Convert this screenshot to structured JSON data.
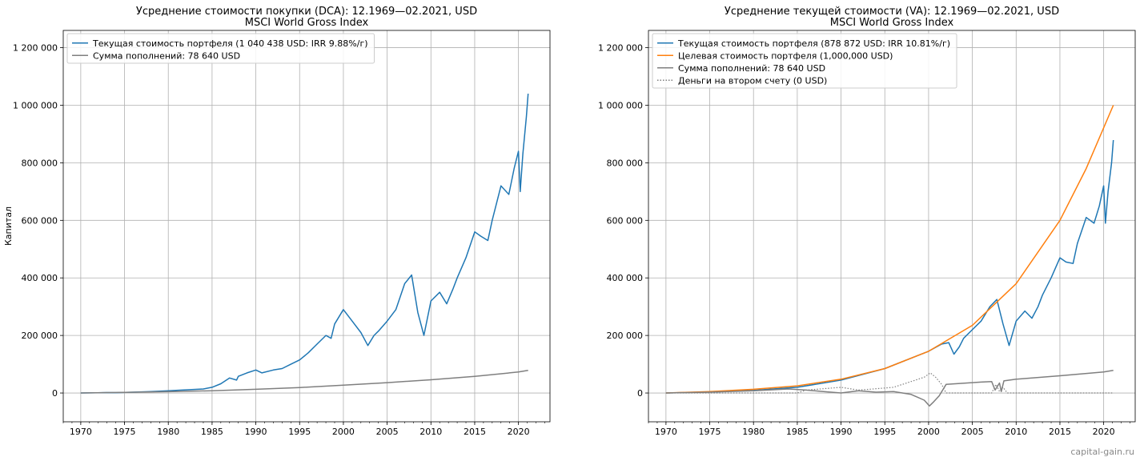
{
  "watermark": "capital-gain.ru",
  "chart_data": [
    {
      "type": "line",
      "title": "Усреднение стоимости покупки (DCA): 12.1969—02.2021, USD",
      "subtitle": "MSCI World Gross Index",
      "xlabel": "",
      "ylabel": "Капитал",
      "xlim": [
        1968,
        2023.6
      ],
      "ylim": [
        -100000,
        1260000
      ],
      "x_ticks": [
        1970,
        1975,
        1980,
        1985,
        1990,
        1995,
        2000,
        2005,
        2010,
        2015,
        2020
      ],
      "x_tick_labels": [
        "1970",
        "1975",
        "1980",
        "1985",
        "1990",
        "1995",
        "2000",
        "2005",
        "2010",
        "2015",
        "2020"
      ],
      "y_ticks": [
        0,
        200000,
        400000,
        600000,
        800000,
        1000000,
        1200000
      ],
      "y_tick_labels": [
        "0",
        "200 000",
        "400 000",
        "600 000",
        "800 000",
        "1 000 000",
        "1 200 000"
      ],
      "grid": true,
      "legend_position": "top-left",
      "series": [
        {
          "name": "Текущая стоимость портфеля (1 040 438 USD: IRR 9.88%/г)",
          "color": "#1f77b4",
          "style": "solid",
          "x": [
            1970,
            1972,
            1973,
            1974,
            1976,
            1978,
            1980,
            1982,
            1984,
            1985,
            1986,
            1987,
            1987.8,
            1988,
            1989,
            1990,
            1990.7,
            1992,
            1993,
            1994,
            1995,
            1996,
            1997,
            1998,
            1998.6,
            1999,
            2000,
            2001,
            2002,
            2002.8,
            2003.5,
            2004,
            2005,
            2006,
            2007,
            2007.8,
            2008.5,
            2009.2,
            2010,
            2011,
            2011.8,
            2012.5,
            2013,
            2014,
            2015,
            2015.7,
            2016.5,
            2017,
            2018,
            2018.9,
            2019.5,
            2020,
            2020.2,
            2020.5,
            2020.9,
            2021.1
          ],
          "values": [
            0,
            1000,
            1500,
            1300,
            3000,
            5000,
            8000,
            11000,
            14000,
            20000,
            32000,
            52000,
            45000,
            58000,
            70000,
            80000,
            70000,
            80000,
            85000,
            100000,
            115000,
            140000,
            170000,
            200000,
            190000,
            240000,
            290000,
            250000,
            210000,
            165000,
            200000,
            215000,
            250000,
            290000,
            380000,
            410000,
            280000,
            200000,
            320000,
            350000,
            310000,
            360000,
            400000,
            470000,
            560000,
            545000,
            530000,
            600000,
            720000,
            690000,
            780000,
            840000,
            700000,
            830000,
            960000,
            1040000
          ]
        },
        {
          "name": "Сумма пополнений: 78 640 USD",
          "color": "#7f7f7f",
          "style": "solid",
          "x": [
            1970,
            1975,
            1980,
            1985,
            1990,
            1995,
            2000,
            2005,
            2010,
            2015,
            2020,
            2021.1
          ],
          "values": [
            0,
            2000,
            4500,
            8000,
            13000,
            19000,
            27000,
            36000,
            46000,
            58000,
            73000,
            78640
          ]
        }
      ]
    },
    {
      "type": "line",
      "title": "Усреднение текущей стоимости (VA): 12.1969—02.2021, USD",
      "subtitle": "MSCI World Gross Index",
      "xlabel": "",
      "ylabel": "",
      "xlim": [
        1968,
        2023.6
      ],
      "ylim": [
        -100000,
        1260000
      ],
      "x_ticks": [
        1970,
        1975,
        1980,
        1985,
        1990,
        1995,
        2000,
        2005,
        2010,
        2015,
        2020
      ],
      "x_tick_labels": [
        "1970",
        "1975",
        "1980",
        "1985",
        "1990",
        "1995",
        "2000",
        "2005",
        "2010",
        "2015",
        "2020"
      ],
      "y_ticks": [
        0,
        200000,
        400000,
        600000,
        800000,
        1000000,
        1200000
      ],
      "y_tick_labels": [
        "0",
        "200 000",
        "400 000",
        "600 000",
        "800 000",
        "1 000 000",
        "1 200 000"
      ],
      "grid": true,
      "legend_position": "top-left",
      "series": [
        {
          "name": "Текущая стоимость портфеля (878 872 USD: IRR 10.81%/г)",
          "color": "#1f77b4",
          "style": "solid",
          "x": [
            1970,
            1975,
            1980,
            1985,
            1990,
            1995,
            2000,
            2001.5,
            2002.3,
            2002.9,
            2003.5,
            2004,
            2005,
            2006,
            2007,
            2007.8,
            2008.5,
            2009.2,
            2010,
            2011,
            2011.8,
            2012.5,
            2013,
            2014,
            2015,
            2015.7,
            2016.5,
            2017,
            2018,
            2018.9,
            2019.5,
            2020,
            2020.2,
            2020.5,
            2020.9,
            2021.1
          ],
          "values": [
            0,
            3500,
            9000,
            20000,
            45000,
            85000,
            145000,
            170000,
            175000,
            135000,
            160000,
            190000,
            220000,
            250000,
            300000,
            325000,
            240000,
            165000,
            250000,
            285000,
            260000,
            300000,
            340000,
            400000,
            470000,
            455000,
            450000,
            520000,
            610000,
            590000,
            650000,
            720000,
            590000,
            700000,
            800000,
            878872
          ]
        },
        {
          "name": "Целевая стоимость портфеля (1,000,000 USD)",
          "color": "#ff7f0e",
          "style": "solid",
          "x": [
            1970,
            1975,
            1980,
            1985,
            1990,
            1995,
            2000,
            2005,
            2010,
            2015,
            2018,
            2021.1
          ],
          "values": [
            0,
            5000,
            13000,
            25000,
            48000,
            85000,
            145000,
            235000,
            380000,
            600000,
            780000,
            1000000
          ]
        },
        {
          "name": "Сумма пополнений: 78 640 USD",
          "color": "#7f7f7f",
          "style": "solid",
          "x": [
            1970,
            1975,
            1980,
            1984,
            1986,
            1988,
            1990,
            1992,
            1994,
            1996,
            1998,
            1999.5,
            2000.1,
            2000.6,
            2001.2,
            2002,
            2006,
            2007.2,
            2007.6,
            2008.1,
            2008.3,
            2008.6,
            2010,
            2015,
            2020,
            2021.1
          ],
          "values": [
            0,
            3000,
            8000,
            14000,
            10000,
            5000,
            0,
            8000,
            3000,
            5000,
            -5000,
            -25000,
            -45000,
            -30000,
            -10000,
            30000,
            38000,
            40000,
            10000,
            35000,
            5000,
            42000,
            48000,
            60000,
            73000,
            78640
          ]
        },
        {
          "name": "Деньги на втором счету (0 USD)",
          "color": "#7f7f7f",
          "style": "dotted",
          "x": [
            1970,
            1985,
            1986,
            1988,
            1990,
            1992,
            1994,
            1996,
            1998,
            1999.5,
            2000.2,
            2000.8,
            2001.5,
            2002,
            2003,
            2006,
            2007.2,
            2007.7,
            2008.1,
            2008.5,
            2009,
            2021.1
          ],
          "values": [
            0,
            0,
            10000,
            15000,
            20000,
            10000,
            15000,
            20000,
            40000,
            55000,
            70000,
            55000,
            30000,
            0,
            0,
            0,
            0,
            30000,
            5000,
            20000,
            0,
            0
          ]
        }
      ]
    }
  ]
}
